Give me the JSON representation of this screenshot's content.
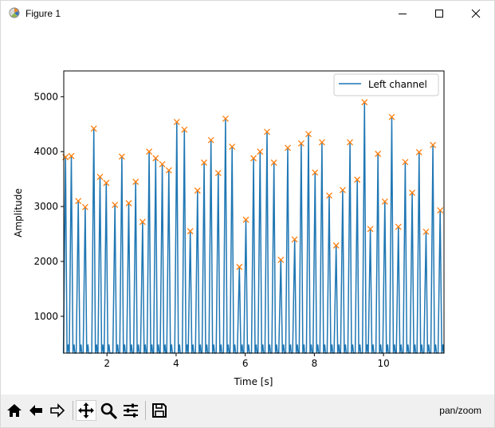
{
  "window": {
    "title": "Figure 1",
    "icons": [
      "matplotlib-icon",
      "minimize-icon",
      "maximize-icon",
      "close-icon"
    ]
  },
  "toolbar": {
    "buttons": [
      {
        "name": "home-icon"
      },
      {
        "name": "back-icon"
      },
      {
        "name": "forward-icon"
      },
      {
        "name": "pan-icon",
        "active": true
      },
      {
        "name": "zoom-icon"
      },
      {
        "name": "configure-subplots-icon"
      },
      {
        "name": "save-icon"
      }
    ],
    "mode": "pan/zoom"
  },
  "chart_data": {
    "type": "line",
    "xlabel": "Time [s]",
    "ylabel": "Amplitude",
    "xlim": [
      0.75,
      11.75
    ],
    "ylim": [
      330,
      5470
    ],
    "xticks": [
      2,
      4,
      6,
      8,
      10
    ],
    "yticks": [
      1000,
      2000,
      3000,
      4000,
      5000
    ],
    "legend": {
      "location": "top-right",
      "entries": [
        "Left channel"
      ]
    },
    "colors": {
      "series": "#1f77b4",
      "peaks": "#ff7f0e"
    },
    "series": [
      {
        "name": "Left channel",
        "baseline": 330,
        "peak_markers": "x",
        "peaks_x": [
          0.8,
          0.97,
          1.17,
          1.37,
          1.62,
          1.8,
          1.98,
          2.23,
          2.43,
          2.63,
          2.83,
          3.03,
          3.22,
          3.41,
          3.6,
          3.79,
          4.02,
          4.24,
          4.41,
          4.62,
          4.81,
          5.01,
          5.22,
          5.43,
          5.62,
          5.83,
          6.02,
          6.24,
          6.43,
          6.63,
          6.83,
          7.03,
          7.23,
          7.43,
          7.62,
          7.83,
          8.02,
          8.22,
          8.43,
          8.63,
          8.82,
          9.03,
          9.24,
          9.45,
          9.62,
          9.84,
          10.04,
          10.24,
          10.43,
          10.63,
          10.83,
          11.03,
          11.23,
          11.43,
          11.64
        ],
        "peaks_y": [
          3900,
          3920,
          3100,
          2990,
          4420,
          3540,
          3430,
          3030,
          3910,
          3060,
          3450,
          2720,
          4000,
          3880,
          3770,
          3660,
          4540,
          4400,
          2550,
          3290,
          3800,
          4210,
          3610,
          4600,
          4090,
          1900,
          2760,
          3880,
          4000,
          4360,
          3800,
          2030,
          4070,
          2400,
          4150,
          4320,
          3620,
          4170,
          3200,
          2290,
          3300,
          4170,
          3490,
          4900,
          2590,
          3960,
          3090,
          4630,
          2630,
          3810,
          3250,
          3990,
          2540,
          4120,
          2930
        ]
      }
    ]
  }
}
